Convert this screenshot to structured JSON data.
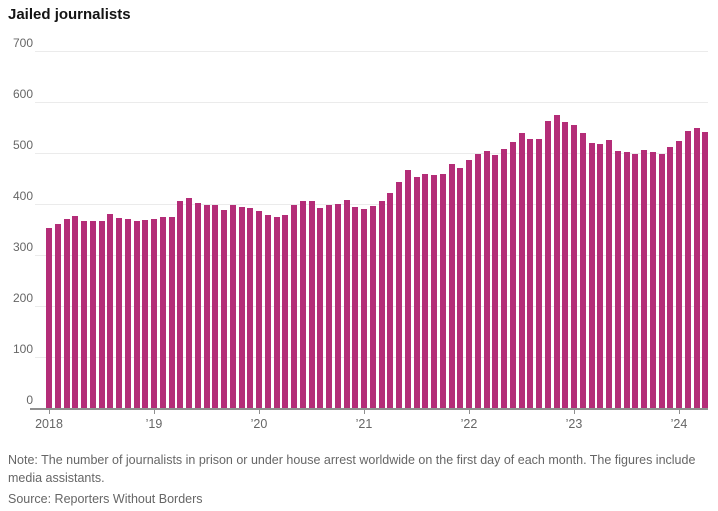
{
  "title": "Jailed journalists",
  "note": "Note: The number of journalists in prison or under house arrest worldwide on the first day of each month. The figures include media assistants.",
  "source": "Source: Reporters Without Borders",
  "colors": {
    "bar": "#b42d78",
    "grid": "#ebebeb",
    "axis": "#8f8f8f",
    "tick_label": "#666666",
    "title": "#141414"
  },
  "chart_data": {
    "type": "bar",
    "title": "Jailed journalists",
    "xlabel": "",
    "ylabel": "",
    "ylim": [
      0,
      700
    ],
    "y_ticks": [
      0,
      100,
      200,
      300,
      400,
      500,
      600,
      700
    ],
    "grid": "horizontal",
    "legend": "none",
    "x_tick_labels": [
      "2018",
      "’19",
      "’20",
      "’21",
      "’22",
      "’23",
      "’24"
    ],
    "x_tick_month_indexes": [
      0,
      12,
      24,
      36,
      48,
      60,
      72
    ],
    "x": [
      "2018-01",
      "2018-02",
      "2018-03",
      "2018-04",
      "2018-05",
      "2018-06",
      "2018-07",
      "2018-08",
      "2018-09",
      "2018-10",
      "2018-11",
      "2018-12",
      "2019-01",
      "2019-02",
      "2019-03",
      "2019-04",
      "2019-05",
      "2019-06",
      "2019-07",
      "2019-08",
      "2019-09",
      "2019-10",
      "2019-11",
      "2019-12",
      "2020-01",
      "2020-02",
      "2020-03",
      "2020-04",
      "2020-05",
      "2020-06",
      "2020-07",
      "2020-08",
      "2020-09",
      "2020-10",
      "2020-11",
      "2020-12",
      "2021-01",
      "2021-02",
      "2021-03",
      "2021-04",
      "2021-05",
      "2021-06",
      "2021-07",
      "2021-08",
      "2021-09",
      "2021-10",
      "2021-11",
      "2021-12",
      "2022-01",
      "2022-02",
      "2022-03",
      "2022-04",
      "2022-05",
      "2022-06",
      "2022-07",
      "2022-08",
      "2022-09",
      "2022-10",
      "2022-11",
      "2022-12",
      "2023-01",
      "2023-02",
      "2023-03",
      "2023-04",
      "2023-05",
      "2023-06",
      "2023-07",
      "2023-08",
      "2023-09",
      "2023-10",
      "2023-11",
      "2023-12",
      "2024-01",
      "2024-02",
      "2024-03",
      "2024-04"
    ],
    "values": [
      353,
      361,
      370,
      376,
      367,
      367,
      366,
      380,
      373,
      371,
      367,
      368,
      371,
      374,
      375,
      405,
      412,
      402,
      398,
      398,
      389,
      399,
      395,
      393,
      386,
      379,
      375,
      379,
      399,
      406,
      405,
      393,
      399,
      400,
      408,
      395,
      391,
      397,
      406,
      422,
      443,
      466,
      453,
      459,
      456,
      458,
      479,
      471,
      487,
      499,
      503,
      496,
      507,
      522,
      539,
      528,
      528,
      563,
      574,
      561,
      554,
      539,
      520,
      518,
      525,
      503,
      501,
      498,
      505,
      502,
      498,
      511,
      524,
      544,
      549,
      542
    ]
  }
}
